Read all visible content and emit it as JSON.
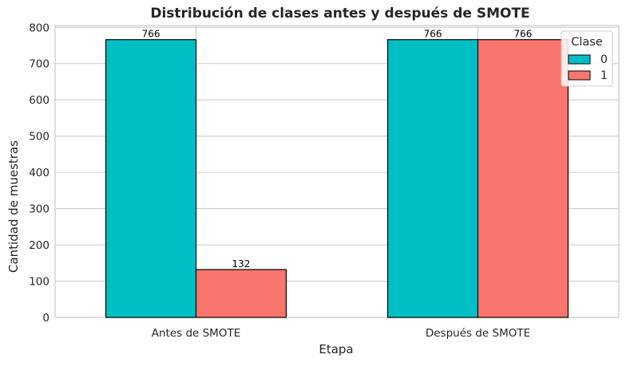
{
  "chart_data": {
    "type": "bar",
    "title": "Distribución de clases antes y después de SMOTE",
    "xlabel": "Etapa",
    "ylabel": "Cantidad de muestras",
    "categories": [
      "Antes de SMOTE",
      "Después de SMOTE"
    ],
    "series": [
      {
        "name": "0",
        "values": [
          766,
          766
        ],
        "color": "#00bfc4"
      },
      {
        "name": "1",
        "values": [
          132,
          766
        ],
        "color": "#f8766d"
      }
    ],
    "data_labels": [
      [
        "766",
        "766"
      ],
      [
        "132",
        "766"
      ]
    ],
    "ylim": [
      0,
      805
    ],
    "yticks": [
      0,
      100,
      200,
      300,
      400,
      500,
      600,
      700,
      800
    ],
    "grid": true,
    "legend": {
      "title": "Clase",
      "position": "top-right"
    }
  }
}
